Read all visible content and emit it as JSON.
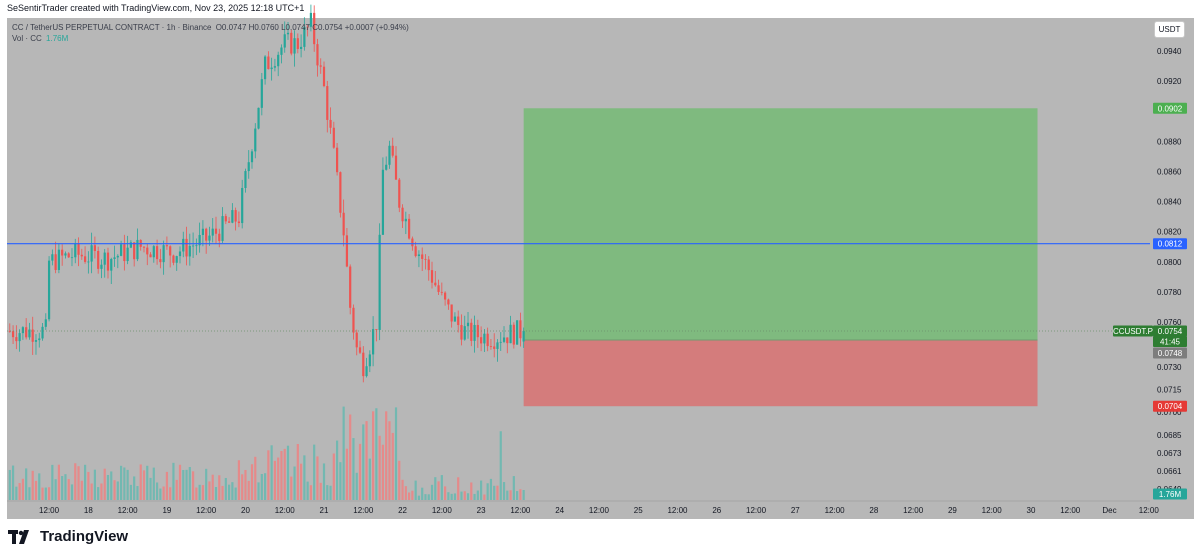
{
  "header": {
    "title": "SeSentirTrader created with TradingView.com, Nov 23, 2025 12:18 UTC+1"
  },
  "legend": {
    "symbol": "CC / TetherUS PERPETUAL CONTRACT · 1h · Binance",
    "ohlc": "O0.0747  H0.0760  L0.0747  C0.0754  +0.0007 (+0.94%)",
    "vol_label": "Vol · CC",
    "vol_value": "1.76M"
  },
  "currency_button": "USDT",
  "price_labels": {
    "target": "0.0902",
    "line": "0.0812",
    "symbol_tag": "CCUSDT.P",
    "last": "0.0754",
    "countdown": "41:45",
    "entry": "0.0748",
    "stop": "0.0704",
    "volume": "1.76M"
  },
  "footer": {
    "brand": "TradingView"
  },
  "colors": {
    "background": "#b7b7b7",
    "up": "#26a69a",
    "down": "#ef5350",
    "profit_zone": "#7fba7f",
    "loss_zone": "#d47c7c",
    "horizontal_line": "#2962ff",
    "vol_up": "#72b8b1",
    "vol_down": "#e58a8a"
  },
  "chart_data": {
    "type": "candlestick",
    "title": "CC / TetherUS PERPETUAL CONTRACT · 1h · Binance",
    "ylabel": "USDT",
    "ylim": [
      0.0641,
      0.0962
    ],
    "y_ticks": [
      "0.0940",
      "0.0920",
      "0.0880",
      "0.0860",
      "0.0840",
      "0.0820",
      "0.0800",
      "0.0780",
      "0.0760",
      "0.0730",
      "0.0715",
      "0.0700",
      "0.0685",
      "0.0673",
      "0.0661",
      "0.0649"
    ],
    "x_ticks": [
      "12:00",
      "18",
      "12:00",
      "19",
      "12:00",
      "20",
      "12:00",
      "21",
      "12:00",
      "22",
      "12:00",
      "23",
      "12:00",
      "24",
      "12:00",
      "25",
      "12:00",
      "26",
      "12:00",
      "27",
      "12:00",
      "28",
      "12:00",
      "29",
      "12:00",
      "30",
      "12:00",
      "Dec",
      "12:00"
    ],
    "x_tick_hours": [
      12,
      24,
      36,
      48,
      60,
      72,
      84,
      96,
      108,
      120,
      132,
      144,
      156,
      168,
      180,
      192,
      204,
      216,
      228,
      240,
      252,
      264,
      276,
      288,
      300,
      312,
      324,
      336,
      348
    ],
    "horizontal_line": 0.0812,
    "position": {
      "entry": 0.0748,
      "target": 0.0902,
      "stop": 0.0704,
      "start_hour": 157,
      "end_hour": 314
    },
    "last_price": 0.0754,
    "price_anchors": [
      [
        12,
        0.08
      ],
      [
        20,
        0.0805
      ],
      [
        30,
        0.0802
      ],
      [
        40,
        0.081
      ],
      [
        50,
        0.0806
      ],
      [
        60,
        0.0815
      ],
      [
        70,
        0.083
      ],
      [
        78,
        0.093
      ],
      [
        84,
        0.0945
      ],
      [
        88,
        0.0945
      ],
      [
        92,
        0.0958
      ],
      [
        96,
        0.0915
      ],
      [
        99,
        0.087
      ],
      [
        102,
        0.082
      ],
      [
        104,
        0.077
      ],
      [
        106,
        0.0742
      ],
      [
        108,
        0.0732
      ],
      [
        110,
        0.0745
      ],
      [
        112,
        0.076
      ],
      [
        114,
        0.086
      ],
      [
        116,
        0.0875
      ],
      [
        119,
        0.084
      ],
      [
        124,
        0.081
      ],
      [
        128,
        0.0795
      ],
      [
        132,
        0.0775
      ],
      [
        136,
        0.076
      ],
      [
        140,
        0.0752
      ],
      [
        148,
        0.075
      ],
      [
        157,
        0.0754
      ]
    ],
    "volume_ylim": [
      0,
      1.0
    ],
    "volume_shape": "small bars ~0.15-0.3 through day 20, rising to peaks ~0.5-0.75 around Nov 21 12:00, then ~0.05-0.2; one spike ~0.4 near Nov 23 12:00; last bar 1.76M"
  }
}
